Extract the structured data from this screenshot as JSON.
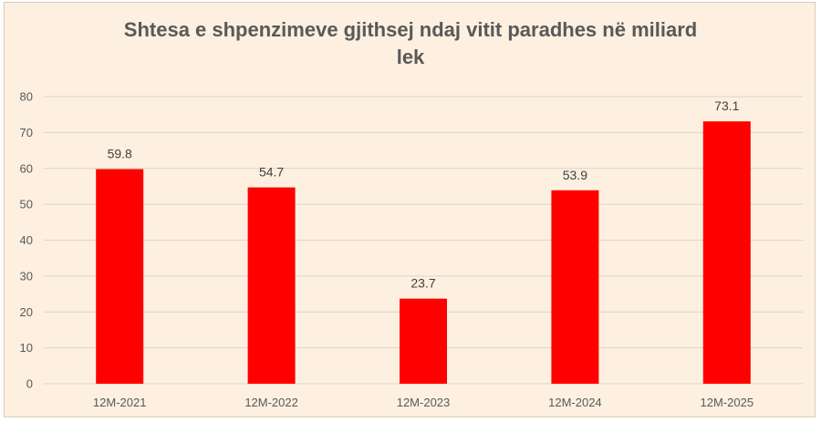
{
  "chart_data": {
    "type": "bar",
    "title_lines": [
      "Shtesa e shpenzimeve gjithsej ndaj vitit paradhes në miliard",
      "lek"
    ],
    "categories": [
      "12M-2021",
      "12M-2022",
      "12M-2023",
      "12M-2024",
      "12M-2025"
    ],
    "values": [
      59.8,
      54.7,
      23.7,
      53.9,
      73.1
    ],
    "data_labels": [
      "59.8",
      "54.7",
      "23.7",
      "53.9",
      "73.1"
    ],
    "ylim": [
      0,
      80
    ],
    "yticks": [
      0,
      10,
      20,
      30,
      40,
      50,
      60,
      70,
      80
    ],
    "grid": true,
    "legend": "none",
    "colors": {
      "bar": "#ff0000",
      "background": "#fdf0e0",
      "grid": "#dcd4ca",
      "text": "#595959"
    }
  }
}
